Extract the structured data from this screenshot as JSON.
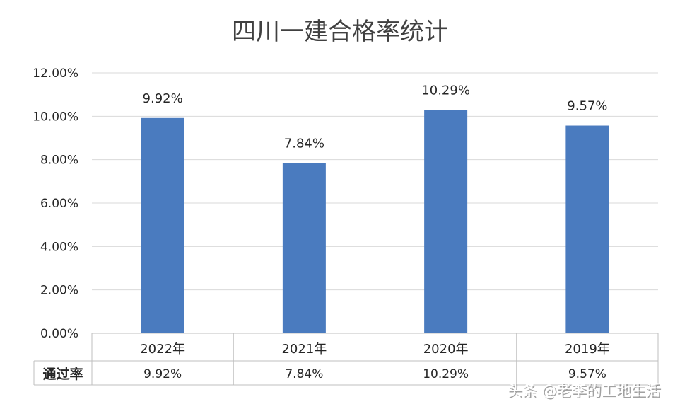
{
  "chart_data": {
    "type": "bar",
    "title": "四川一建合格率统计",
    "categories": [
      "2022年",
      "2021年",
      "2020年",
      "2019年"
    ],
    "series": [
      {
        "values": [
          9.92,
          7.84,
          10.29,
          9.57
        ],
        "labels": [
          "9.92%",
          "7.84%",
          "10.29%",
          "9.57%"
        ]
      }
    ],
    "ylim": [
      0,
      12
    ],
    "yticks": [
      "0.00%",
      "2.00%",
      "4.00%",
      "6.00%",
      "8.00%",
      "10.00%",
      "12.00%"
    ],
    "grid": true,
    "bar_color": "#4a7bbf",
    "data_table": {
      "row_header": "通过率",
      "cells": [
        "9.92%",
        "7.84%",
        "10.29%",
        "9.57%"
      ]
    }
  },
  "watermark": "头条 @老李的工地生活"
}
